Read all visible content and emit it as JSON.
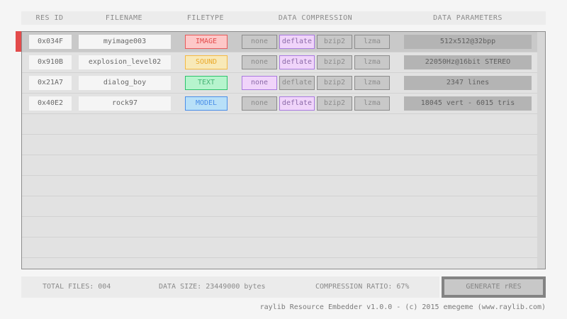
{
  "header": {
    "res_id": "RES ID",
    "filename": "FILENAME",
    "filetype": "FILETYPE",
    "compression": "DATA COMPRESSION",
    "parameters": "DATA PARAMETERS"
  },
  "compression_options": [
    "none",
    "deflate",
    "bzip2",
    "lzma"
  ],
  "rows": [
    {
      "id": "0x034F",
      "filename": "myimage003",
      "type": "IMAGE",
      "compression": "deflate",
      "params": "512x512@32bpp",
      "type_colors": {
        "bg": "#fdc8c8",
        "border": "#e85a5a",
        "text": "#e34b4b"
      },
      "selected": true
    },
    {
      "id": "0x910B",
      "filename": "explosion_level02",
      "type": "SOUND",
      "compression": "deflate",
      "params": "22050Hz@16bit STEREO",
      "type_colors": {
        "bg": "#f8e9b8",
        "border": "#f5b942",
        "text": "#eaa92a"
      },
      "selected": false
    },
    {
      "id": "0x21A7",
      "filename": "dialog_boy",
      "type": "TEXT",
      "compression": "none",
      "params": "2347 lines",
      "type_colors": {
        "bg": "#b6f4cd",
        "border": "#2cc46c",
        "text": "#48b476"
      },
      "selected": false
    },
    {
      "id": "0x40E2",
      "filename": "rock97",
      "type": "MODEL",
      "compression": "deflate",
      "params": "18045 vert - 6015 tris",
      "type_colors": {
        "bg": "#b8e0f8",
        "border": "#4a8ee8",
        "text": "#4a8ee8"
      },
      "selected": false
    }
  ],
  "footer": {
    "total_files": "TOTAL FILES: 004",
    "data_size": "DATA SIZE: 23449000 bytes",
    "ratio": "COMPRESSION RATIO: 67%",
    "generate": "GENERATE rRES"
  },
  "credit": "raylib Resource Embedder v1.0.0 - (c) 2015 emegeme (www.raylib.com)"
}
